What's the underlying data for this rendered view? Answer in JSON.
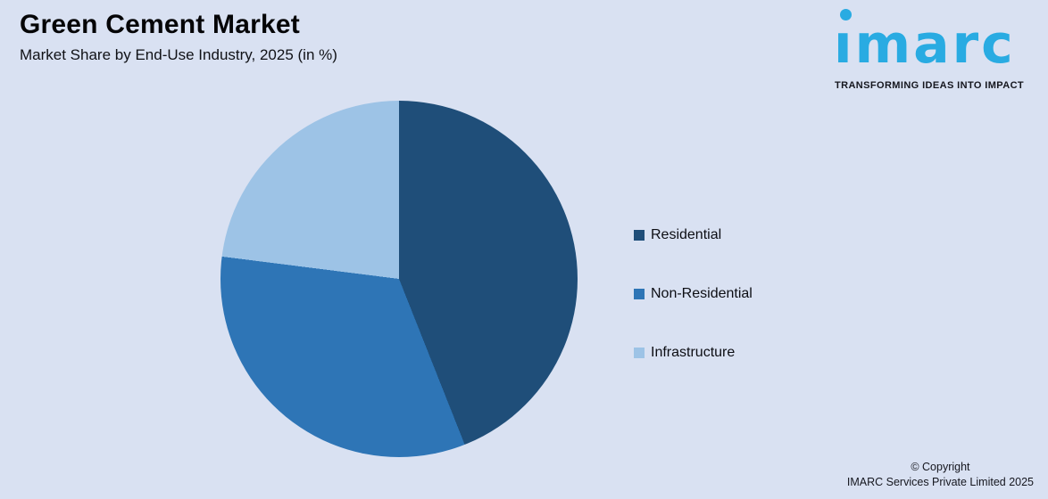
{
  "header": {
    "title": "Green Cement Market",
    "subtitle": "Market Share by End-Use Industry, 2025 (in %)"
  },
  "logo": {
    "brand": "imarc",
    "tagline": "TRANSFORMING IDEAS INTO IMPACT",
    "brand_color": "#29ABE2"
  },
  "chart_data": {
    "type": "pie",
    "title": "Green Cement Market",
    "subtitle": "Market Share by End-Use Industry, 2025 (in %)",
    "unit": "%",
    "labels": [
      "Residential",
      "Non-Residential",
      "Infrastructure"
    ],
    "values": [
      44,
      33,
      23
    ],
    "colors": [
      "#1F4E79",
      "#2E75B6",
      "#9DC3E6"
    ],
    "background_color": "#D9E1F2",
    "start_angle_deg": 0,
    "direction": "clockwise",
    "legend_position": "right",
    "data_labels_shown": false
  },
  "footer": {
    "line1": "© Copyright",
    "line2": "IMARC Services Private Limited 2025"
  }
}
